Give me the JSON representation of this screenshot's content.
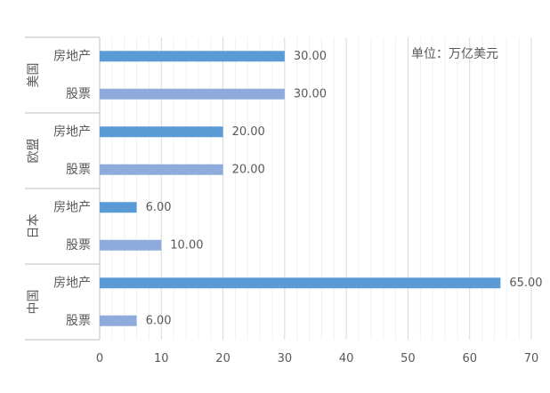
{
  "chart_data": {
    "type": "bar",
    "orientation": "horizontal",
    "unit_note": "单位：万亿美元",
    "groups": [
      {
        "name": "美国",
        "items": [
          {
            "label": "房地产",
            "value": 30.0,
            "display": "30.00"
          },
          {
            "label": "股票",
            "value": 30.0,
            "display": "30.00"
          }
        ]
      },
      {
        "name": "欧盟",
        "items": [
          {
            "label": "房地产",
            "value": 20.0,
            "display": "20.00"
          },
          {
            "label": "股票",
            "value": 20.0,
            "display": "20.00"
          }
        ]
      },
      {
        "name": "日本",
        "items": [
          {
            "label": "房地产",
            "value": 6.0,
            "display": "6.00"
          },
          {
            "label": "股票",
            "value": 10.0,
            "display": "10.00"
          }
        ]
      },
      {
        "name": "中国",
        "items": [
          {
            "label": "房地产",
            "value": 65.0,
            "display": "65.00"
          },
          {
            "label": "股票",
            "value": 6.0,
            "display": "6.00"
          }
        ]
      }
    ],
    "xlim": [
      0,
      70
    ],
    "xticks": [
      0,
      10,
      20,
      30,
      40,
      50,
      60,
      70
    ],
    "minor_grid_step": 2,
    "grid": true,
    "colors": {
      "房地产": "#5b9bd5",
      "股票": "#8faadc",
      "grid_major": "#d9d9d9",
      "grid_minor": "#f0f0f0",
      "text": "#595959"
    }
  }
}
